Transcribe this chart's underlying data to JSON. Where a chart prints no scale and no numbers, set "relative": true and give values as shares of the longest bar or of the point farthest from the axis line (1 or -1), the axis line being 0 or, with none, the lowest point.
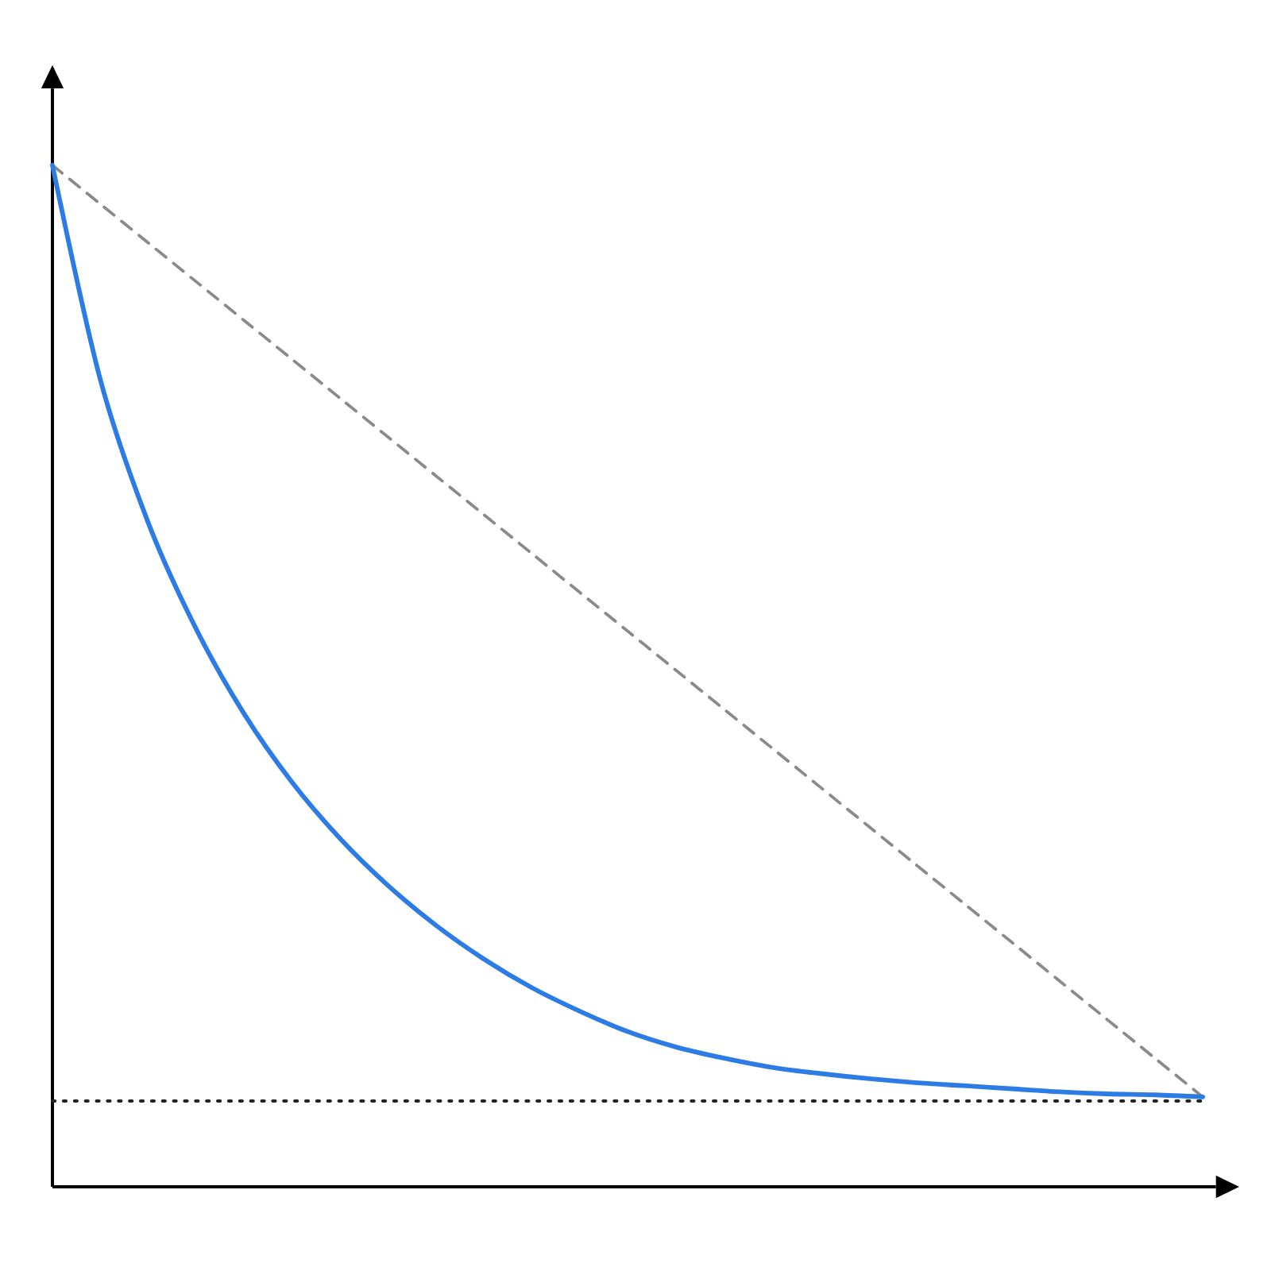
{
  "chart_data": {
    "type": "line",
    "relative": true,
    "marker": "none",
    "categories": [
      null,
      null,
      null,
      null,
      null,
      null,
      null,
      null,
      null,
      null,
      null,
      null,
      null,
      null,
      null,
      null,
      null,
      null,
      null,
      null,
      null,
      null,
      null,
      null,
      null
    ],
    "series": [
      {
        "color": "#2d7be5",
        "values": [
          1,
          0.79,
          0.65,
          0.546,
          0.463,
          0.396,
          0.341,
          0.295,
          0.256,
          0.223,
          0.195,
          0.172,
          0.152,
          0.137,
          0.126,
          0.117,
          0.111,
          0.106,
          0.102,
          0.099,
          0.096,
          0.093,
          0.091,
          0.09,
          0.088
        ]
      },
      {
        "color": "#8a8a8a",
        "line_style": "dashed",
        "values": [
          1,
          0.962,
          0.924,
          0.886,
          0.848,
          0.81,
          0.772,
          0.734,
          0.696,
          0.658,
          0.62,
          0.582,
          0.544,
          0.506,
          0.468,
          0.43,
          0.392,
          0.354,
          0.316,
          0.278,
          0.24,
          0.202,
          0.164,
          0.126,
          0.088
        ]
      }
    ],
    "ref_lines": [
      {
        "axis": "y",
        "value": 0.084,
        "color": "#222222",
        "line_style": "dotted"
      }
    ]
  }
}
